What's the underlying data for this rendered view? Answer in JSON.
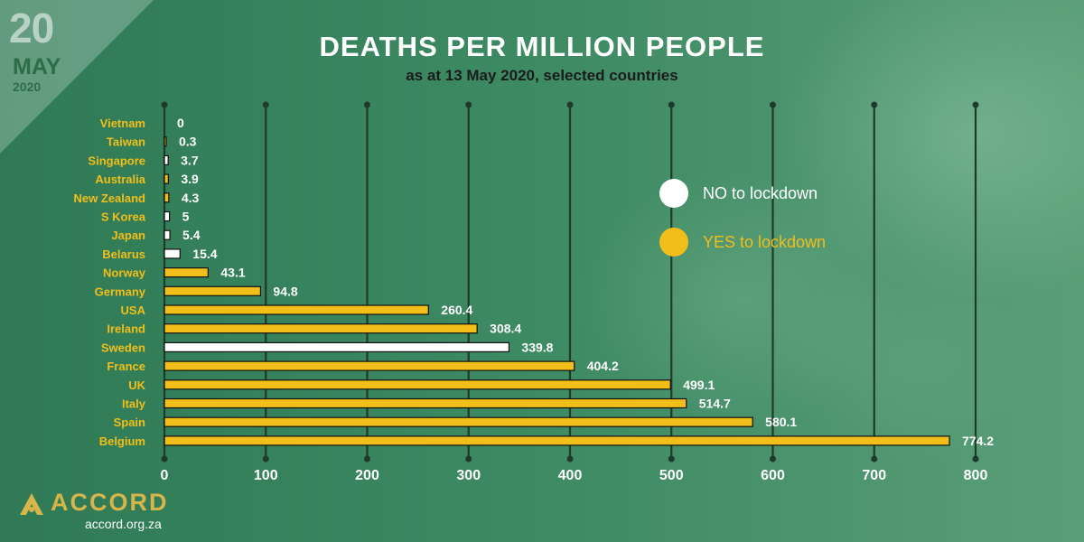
{
  "date": {
    "day": "20",
    "month": "MAY",
    "year": "2020"
  },
  "logo": {
    "name": "ACCORD",
    "url": "accord.org.za"
  },
  "colors": {
    "no": "#ffffff",
    "yes": "#f2be1a",
    "label": "#f2be1a"
  },
  "legend": [
    {
      "label": "NO to lockdown",
      "color": "#ffffff"
    },
    {
      "label": "YES to lockdown",
      "color": "#f2be1a"
    }
  ],
  "chart_data": {
    "type": "bar",
    "orientation": "horizontal",
    "title": "DEATHS PER MILLION PEOPLE",
    "subtitle": "as at 13 May 2020, selected countries",
    "categories": [
      "Vietnam",
      "Taiwan",
      "Singapore",
      "Australia",
      "New Zealand",
      "S Korea",
      "Japan",
      "Belarus",
      "Norway",
      "Germany",
      "USA",
      "Ireland",
      "Sweden",
      "France",
      "UK",
      "Italy",
      "Spain",
      "Belgium"
    ],
    "values": [
      0,
      0.3,
      3.7,
      3.9,
      4.3,
      5,
      5.4,
      15.4,
      43.1,
      94.8,
      260.4,
      308.4,
      339.8,
      404.2,
      499.1,
      514.7,
      580.1,
      774.2
    ],
    "value_labels": [
      "0",
      "0.3",
      "3.7",
      "3.9",
      "4.3",
      "5",
      "5.4",
      "15.4",
      "43.1",
      "94.8",
      "260.4",
      "308.4",
      "339.8",
      "404.2",
      "499.1",
      "514.7",
      "580.1",
      "774.2"
    ],
    "lockdown": [
      "yes",
      "yes",
      "no",
      "yes",
      "yes",
      "no",
      "no",
      "no",
      "yes",
      "yes",
      "yes",
      "yes",
      "no",
      "yes",
      "yes",
      "yes",
      "yes",
      "yes"
    ],
    "xlim": [
      0,
      800
    ],
    "xticks": [
      0,
      100,
      200,
      300,
      400,
      500,
      600,
      700,
      800
    ],
    "xlabel": "",
    "ylabel": "",
    "grid": true,
    "legend_position": "right"
  }
}
